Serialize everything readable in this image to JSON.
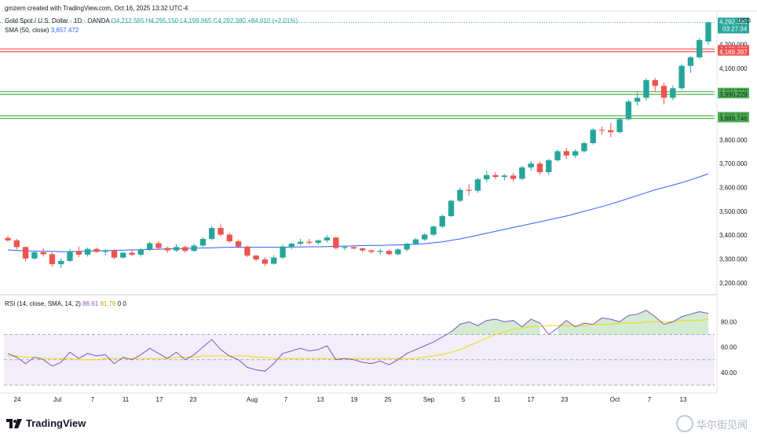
{
  "header": {
    "created_by": "gmzern created with TradingView.com, Oct 16, 2025 13:32 UTC-4",
    "symbol": "Gold Spot / U.S. Dollar · 1D · OANDA",
    "ohlc": "O4,212.565  H4,295.150  L4,199.965  C4,292.380  +84.610 (+2.01%)",
    "sma_label": "SMA (50, close)",
    "sma_value": "3,657.472",
    "rsi_label": "RSI (14, close, SMA, 14, 2)",
    "rsi_value": "86.61",
    "rsi_sma_value": "81.76",
    "rsi_extra": "0  0"
  },
  "currency": "USD",
  "brand": {
    "name": "TradingView"
  },
  "watermark": {
    "text": "华尔街见闻"
  },
  "colors": {
    "up": "#26a69a",
    "down": "#ef5350",
    "sma": "#2962ff",
    "rsi": "#7e57c2",
    "rsi_sma": "#f5d800",
    "resistance": "#ef5350",
    "support": "#4caf50"
  },
  "chart_data": [
    {
      "type": "candlestick",
      "title": "Gold Spot / U.S. Dollar · 1D · OANDA",
      "ylim": [
        3150,
        4340
      ],
      "y_ticks": [
        "3,200.000",
        "3,300.000",
        "3,400.000",
        "3,500.000",
        "3,600.000",
        "3,700.000",
        "3,800.000",
        "3,900.000",
        "4,000.000",
        "4,100.000",
        "4,200.000"
      ],
      "x_ticks": [
        "24",
        "Jul",
        "7",
        "11",
        "17",
        "23",
        "Aug",
        "7",
        "13",
        "19",
        "25",
        "Sep",
        "5",
        "11",
        "17",
        "23",
        "Oct",
        "7",
        "13"
      ],
      "current_price": {
        "value": "4,292.380",
        "timer": "03:27:34"
      },
      "horizontal_levels": [
        {
          "value": "4,180.688",
          "kind": "resistance"
        },
        {
          "value": "4,169.397",
          "kind": "resistance"
        },
        {
          "value": "4,001.552",
          "kind": "support"
        },
        {
          "value": "3,990.229",
          "kind": "support"
        },
        {
          "value": "3,900.122",
          "kind": "support"
        },
        {
          "value": "3,889.746",
          "kind": "support"
        }
      ],
      "candles": [
        [
          3388,
          3398,
          3372,
          3378
        ],
        [
          3378,
          3384,
          3340,
          3350
        ],
        [
          3350,
          3352,
          3292,
          3302
        ],
        [
          3302,
          3336,
          3298,
          3328
        ],
        [
          3328,
          3345,
          3310,
          3320
        ],
        [
          3320,
          3328,
          3268,
          3278
        ],
        [
          3278,
          3302,
          3262,
          3292
        ],
        [
          3292,
          3342,
          3288,
          3332
        ],
        [
          3332,
          3352,
          3308,
          3318
        ],
        [
          3318,
          3348,
          3310,
          3342
        ],
        [
          3342,
          3348,
          3325,
          3330
        ],
        [
          3330,
          3342,
          3315,
          3336
        ],
        [
          3336,
          3340,
          3300,
          3306
        ],
        [
          3306,
          3330,
          3302,
          3326
        ],
        [
          3326,
          3336,
          3312,
          3318
        ],
        [
          3318,
          3345,
          3310,
          3340
        ],
        [
          3340,
          3372,
          3334,
          3366
        ],
        [
          3366,
          3376,
          3340,
          3346
        ],
        [
          3346,
          3352,
          3326,
          3336
        ],
        [
          3336,
          3362,
          3330,
          3350
        ],
        [
          3350,
          3356,
          3326,
          3334
        ],
        [
          3334,
          3364,
          3330,
          3356
        ],
        [
          3356,
          3392,
          3350,
          3384
        ],
        [
          3384,
          3438,
          3378,
          3430
        ],
        [
          3430,
          3448,
          3396,
          3402
        ],
        [
          3402,
          3410,
          3368,
          3374
        ],
        [
          3374,
          3382,
          3345,
          3352
        ],
        [
          3352,
          3356,
          3308,
          3314
        ],
        [
          3314,
          3318,
          3290,
          3298
        ],
        [
          3298,
          3308,
          3270,
          3280
        ],
        [
          3280,
          3316,
          3276,
          3306
        ],
        [
          3306,
          3362,
          3300,
          3352
        ],
        [
          3352,
          3368,
          3340,
          3364
        ],
        [
          3364,
          3385,
          3356,
          3372
        ],
        [
          3372,
          3384,
          3360,
          3368
        ],
        [
          3368,
          3382,
          3360,
          3378
        ],
        [
          3378,
          3400,
          3370,
          3390
        ],
        [
          3390,
          3392,
          3340,
          3346
        ],
        [
          3346,
          3356,
          3336,
          3350
        ],
        [
          3350,
          3358,
          3340,
          3344
        ],
        [
          3344,
          3348,
          3328,
          3336
        ],
        [
          3336,
          3340,
          3322,
          3330
        ],
        [
          3330,
          3342,
          3318,
          3334
        ],
        [
          3334,
          3340,
          3316,
          3320
        ],
        [
          3320,
          3346,
          3316,
          3340
        ],
        [
          3340,
          3368,
          3332,
          3364
        ],
        [
          3364,
          3388,
          3358,
          3382
        ],
        [
          3382,
          3408,
          3376,
          3402
        ],
        [
          3402,
          3440,
          3396,
          3436
        ],
        [
          3436,
          3486,
          3430,
          3480
        ],
        [
          3480,
          3548,
          3476,
          3544
        ],
        [
          3544,
          3600,
          3538,
          3590
        ],
        [
          3590,
          3614,
          3566,
          3586
        ],
        [
          3586,
          3640,
          3578,
          3634
        ],
        [
          3634,
          3670,
          3620,
          3652
        ],
        [
          3652,
          3665,
          3635,
          3644
        ],
        [
          3644,
          3656,
          3630,
          3650
        ],
        [
          3650,
          3660,
          3624,
          3636
        ],
        [
          3636,
          3690,
          3630,
          3684
        ],
        [
          3684,
          3712,
          3670,
          3700
        ],
        [
          3700,
          3710,
          3654,
          3664
        ],
        [
          3664,
          3720,
          3652,
          3714
        ],
        [
          3714,
          3760,
          3708,
          3752
        ],
        [
          3752,
          3766,
          3720,
          3734
        ],
        [
          3734,
          3760,
          3724,
          3752
        ],
        [
          3752,
          3792,
          3746,
          3786
        ],
        [
          3786,
          3848,
          3780,
          3842
        ],
        [
          3842,
          3855,
          3822,
          3840
        ],
        [
          3840,
          3870,
          3810,
          3832
        ],
        [
          3832,
          3892,
          3826,
          3886
        ],
        [
          3886,
          3968,
          3880,
          3960
        ],
        [
          3960,
          3998,
          3944,
          3976
        ],
        [
          3976,
          4058,
          3966,
          4050
        ],
        [
          4050,
          4060,
          4000,
          4026
        ],
        [
          4026,
          4040,
          3948,
          3976
        ],
        [
          3976,
          4028,
          3966,
          4016
        ],
        [
          4016,
          4116,
          4010,
          4110
        ],
        [
          4110,
          4152,
          4080,
          4146
        ],
        [
          4146,
          4226,
          4140,
          4218
        ],
        [
          4212,
          4295,
          4200,
          4292
        ]
      ],
      "series": [
        {
          "name": "SMA (50, close)",
          "values": [
            3338,
            3336,
            3334,
            3333,
            3332,
            3332,
            3331,
            3331,
            3332,
            3333,
            3334,
            3335,
            3336,
            3337,
            3338,
            3339,
            3340,
            3341,
            3342,
            3343,
            3344,
            3345,
            3346,
            3347,
            3348,
            3349,
            3349,
            3349,
            3349,
            3349,
            3349,
            3349,
            3350,
            3350,
            3351,
            3351,
            3352,
            3353,
            3354,
            3355,
            3356,
            3357,
            3357,
            3358,
            3359,
            3360,
            3362,
            3364,
            3368,
            3372,
            3378,
            3384,
            3392,
            3400,
            3408,
            3416,
            3424,
            3432,
            3440,
            3448,
            3456,
            3464,
            3472,
            3480,
            3490,
            3500,
            3510,
            3520,
            3530,
            3542,
            3554,
            3566,
            3578,
            3590,
            3600,
            3610,
            3620,
            3632,
            3644,
            3657.472
          ]
        }
      ]
    },
    {
      "type": "line",
      "title": "RSI (14, close, SMA, 14, 2)",
      "ylim": [
        30,
        92
      ],
      "y_ticks": [
        "40.00",
        "60.00",
        "80.00"
      ],
      "levels": [
        70,
        50,
        30
      ],
      "series": [
        {
          "name": "RSI",
          "values": [
            55,
            52,
            47,
            52,
            50,
            45,
            48,
            56,
            51,
            55,
            53,
            54,
            47,
            52,
            50,
            54,
            59,
            55,
            51,
            56,
            50,
            54,
            60,
            66,
            58,
            53,
            50,
            44,
            42,
            41,
            47,
            55,
            57,
            59,
            57,
            58,
            61,
            50,
            51,
            50,
            48,
            47,
            49,
            46,
            50,
            55,
            58,
            61,
            64,
            68,
            72,
            78,
            80,
            77,
            81,
            82,
            80,
            81,
            76,
            82,
            79,
            70,
            75,
            81,
            76,
            79,
            78,
            83,
            82,
            80,
            85,
            86,
            89,
            84,
            78,
            80,
            84,
            86,
            88,
            86.61
          ]
        },
        {
          "name": "RSI SMA",
          "values": [
            53,
            53,
            52,
            52,
            51,
            51,
            51,
            51,
            50,
            50,
            50,
            51,
            51,
            51,
            51,
            51,
            51,
            51,
            51,
            52,
            52,
            52,
            53,
            53,
            53,
            53,
            53,
            53,
            52,
            52,
            51,
            51,
            51,
            51,
            51,
            51,
            51,
            51,
            51,
            51,
            51,
            51,
            51,
            51,
            51,
            51,
            51,
            52,
            53,
            54,
            56,
            58,
            61,
            64,
            67,
            70,
            72,
            74,
            75,
            76,
            76,
            77,
            77,
            77,
            77,
            77,
            78,
            78,
            78,
            79,
            79,
            79,
            80,
            80,
            80,
            80,
            81,
            81,
            81,
            81.76
          ]
        }
      ]
    }
  ]
}
